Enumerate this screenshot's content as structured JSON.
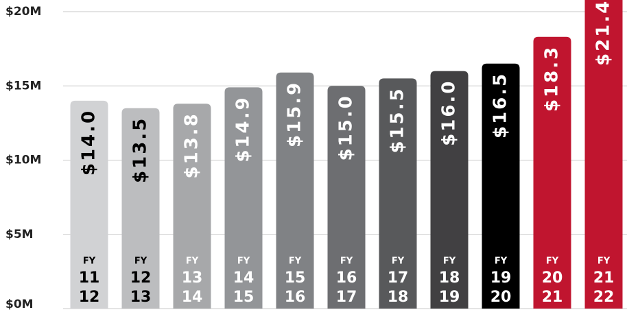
{
  "chart_data": {
    "type": "bar",
    "categories": [
      [
        "FY",
        "11",
        "12"
      ],
      [
        "FY",
        "12",
        "13"
      ],
      [
        "FY",
        "13",
        "14"
      ],
      [
        "FY",
        "14",
        "15"
      ],
      [
        "FY",
        "15",
        "16"
      ],
      [
        "FY",
        "16",
        "17"
      ],
      [
        "FY",
        "17",
        "18"
      ],
      [
        "FY",
        "18",
        "19"
      ],
      [
        "FY",
        "19",
        "20"
      ],
      [
        "FY",
        "20",
        "21"
      ],
      [
        "FY",
        "21",
        "22"
      ]
    ],
    "values": [
      14.0,
      13.5,
      13.8,
      14.9,
      15.9,
      15.0,
      15.5,
      16.0,
      16.5,
      18.3,
      21.4
    ],
    "value_labels": [
      "$14.0",
      "$13.5",
      "$13.8",
      "$14.9",
      "$15.9",
      "$15.0",
      "$15.5",
      "$16.0",
      "$16.5",
      "$18.3",
      "$21.4"
    ],
    "colors": [
      "#d1d2d4",
      "#bcbdbf",
      "#a7a8aa",
      "#939598",
      "#808285",
      "#6d6e71",
      "#58595b",
      "#414042",
      "#000000",
      "#c0152f",
      "#c0152f"
    ],
    "text_colors": [
      "#000000",
      "#000000",
      "#ffffff",
      "#ffffff",
      "#ffffff",
      "#ffffff",
      "#ffffff",
      "#ffffff",
      "#ffffff",
      "#ffffff",
      "#ffffff"
    ],
    "ylim": [
      0,
      20
    ],
    "yticks": [
      {
        "value": 0,
        "label": "$0M"
      },
      {
        "value": 5,
        "label": "$5M"
      },
      {
        "value": 10,
        "label": "$10M"
      },
      {
        "value": 15,
        "label": "$15M"
      },
      {
        "value": 20,
        "label": "$20M"
      }
    ],
    "grid": true
  }
}
